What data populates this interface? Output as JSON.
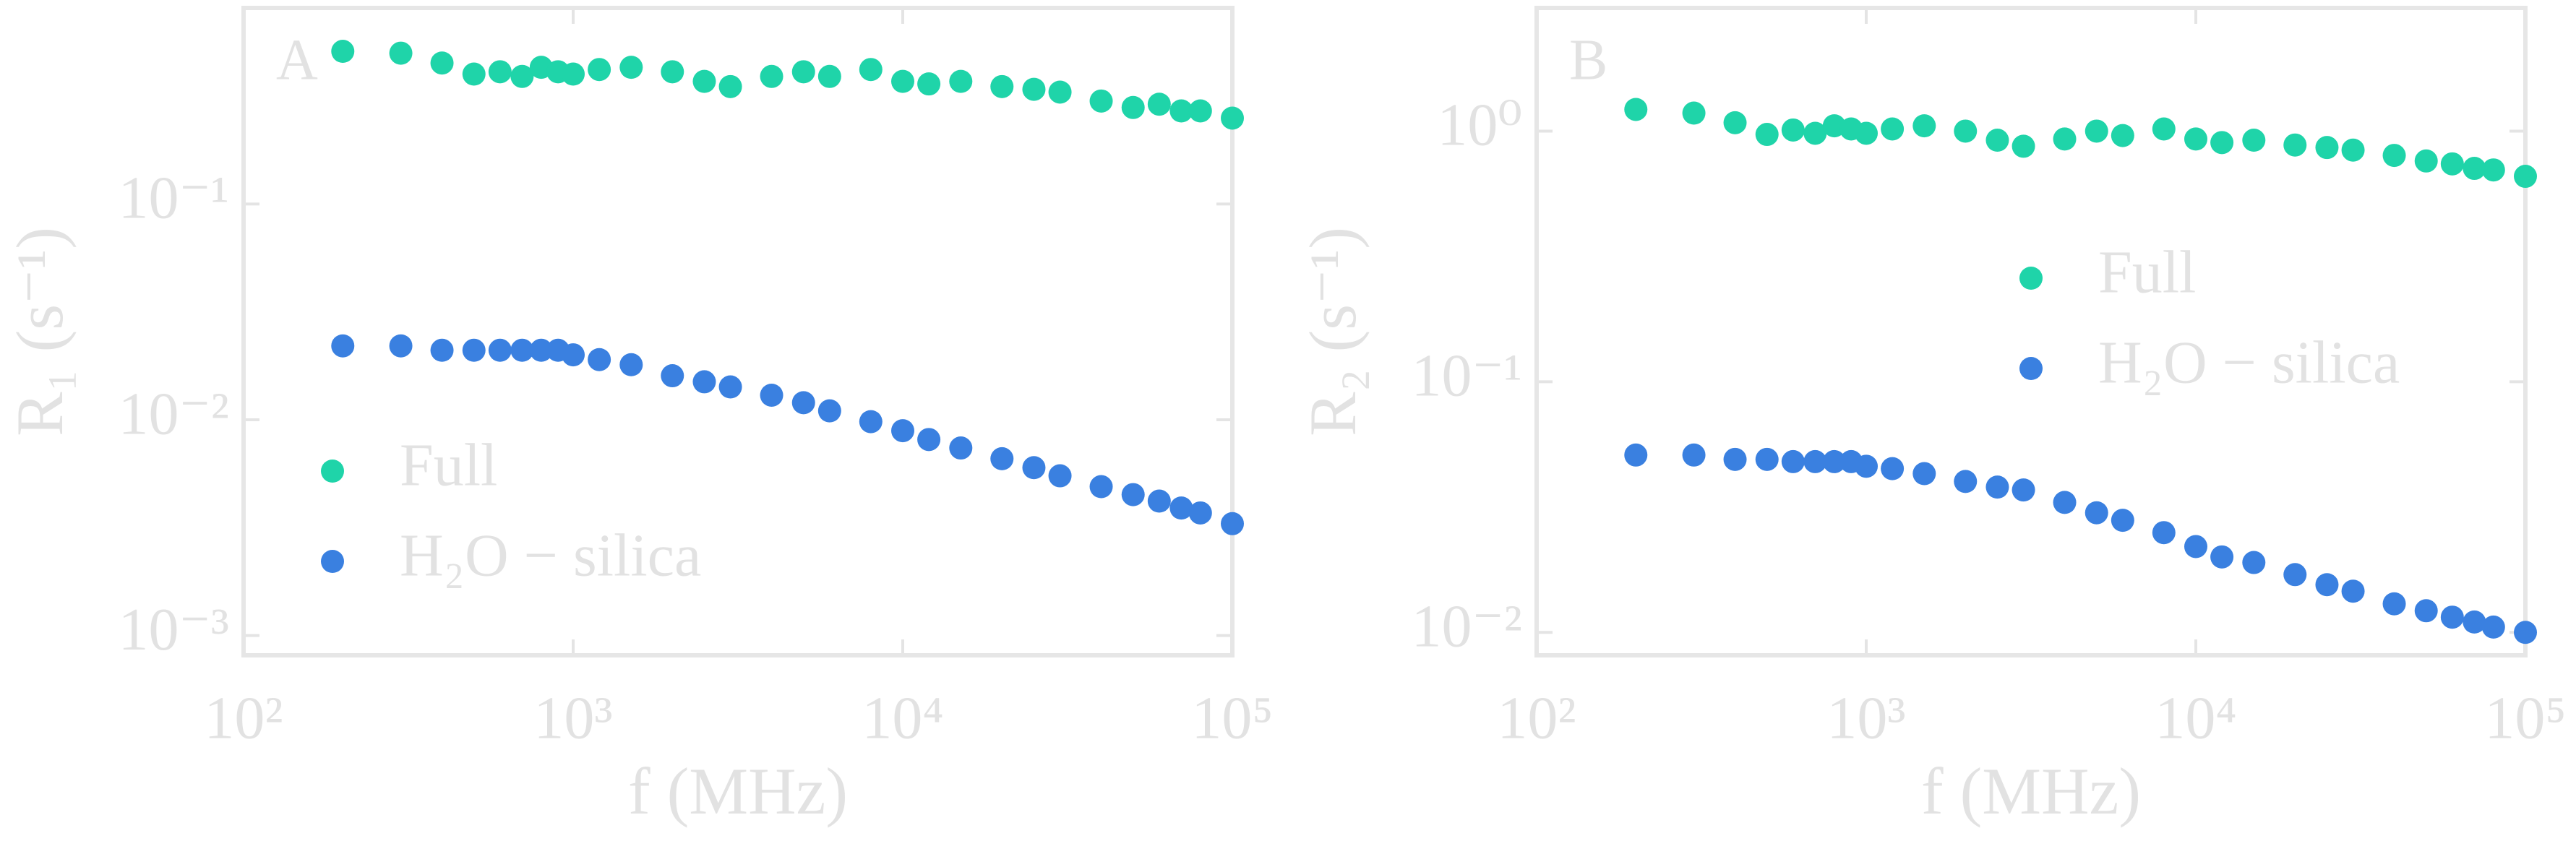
{
  "chart_data": [
    {
      "type": "scatter",
      "panel": "A",
      "x_label": "f (MHz)",
      "y_label": "R₁ (s⁻¹)",
      "log_x": true,
      "log_y": true,
      "xlim": [
        100,
        100000
      ],
      "ylim": [
        0.00081,
        0.81
      ],
      "xticks": [
        {
          "value": 100,
          "label": "10²"
        },
        {
          "value": 1000,
          "label": "10³"
        },
        {
          "value": 10000,
          "label": "10⁴"
        },
        {
          "value": 100000,
          "label": "10⁵"
        }
      ],
      "yticks": [
        {
          "value": 0.001,
          "label": "10⁻³"
        },
        {
          "value": 0.01,
          "label": "10⁻²"
        },
        {
          "value": 0.1,
          "label": "10⁻¹"
        }
      ],
      "legend_position": "lower left",
      "x": [
        200,
        300,
        400,
        500,
        600,
        700,
        800,
        900,
        1000,
        1200,
        1500,
        2000,
        2500,
        3000,
        4000,
        5000,
        6000,
        8000,
        10000,
        12000,
        15000,
        20000,
        25000,
        30000,
        40000,
        50000,
        60000,
        70000,
        80000,
        100000
      ],
      "series": [
        {
          "name": "Full",
          "color": "#1fd4a9",
          "values": [
            0.51,
            0.5,
            0.45,
            0.4,
            0.41,
            0.39,
            0.43,
            0.41,
            0.4,
            0.42,
            0.43,
            0.41,
            0.37,
            0.35,
            0.39,
            0.41,
            0.39,
            0.42,
            0.37,
            0.36,
            0.37,
            0.35,
            0.34,
            0.33,
            0.3,
            0.28,
            0.29,
            0.27,
            0.27,
            0.25
          ]
        },
        {
          "name": "H₂O − silica",
          "color": "#3a80e0",
          "values": [
            0.022,
            0.022,
            0.021,
            0.021,
            0.021,
            0.021,
            0.021,
            0.021,
            0.02,
            0.019,
            0.018,
            0.016,
            0.015,
            0.0142,
            0.013,
            0.012,
            0.011,
            0.0098,
            0.0089,
            0.0081,
            0.0074,
            0.0066,
            0.006,
            0.0055,
            0.0049,
            0.0045,
            0.0042,
            0.0039,
            0.0037,
            0.0033
          ]
        }
      ]
    },
    {
      "type": "scatter",
      "panel": "B",
      "x_label": "f (MHz)",
      "y_label": "R₂ (s⁻¹)",
      "log_x": true,
      "log_y": true,
      "xlim": [
        100,
        100000
      ],
      "ylim": [
        0.0081,
        3.1
      ],
      "xticks": [
        {
          "value": 100,
          "label": "10²"
        },
        {
          "value": 1000,
          "label": "10³"
        },
        {
          "value": 10000,
          "label": "10⁴"
        },
        {
          "value": 100000,
          "label": "10⁵"
        }
      ],
      "yticks": [
        {
          "value": 0.01,
          "label": "10⁻²"
        },
        {
          "value": 0.1,
          "label": "10⁻¹"
        },
        {
          "value": 1,
          "label": "10⁰"
        }
      ],
      "legend_position": "center right",
      "x": [
        200,
        300,
        400,
        500,
        600,
        700,
        800,
        900,
        1000,
        1200,
        1500,
        2000,
        2500,
        3000,
        4000,
        5000,
        6000,
        8000,
        10000,
        12000,
        15000,
        20000,
        25000,
        30000,
        40000,
        50000,
        60000,
        70000,
        80000,
        100000
      ],
      "series": [
        {
          "name": "Full",
          "color": "#1fd4a9",
          "values": [
            1.22,
            1.18,
            1.08,
            0.97,
            1.01,
            0.98,
            1.05,
            1.02,
            0.98,
            1.02,
            1.05,
            1.0,
            0.92,
            0.87,
            0.93,
            1.0,
            0.96,
            1.02,
            0.93,
            0.9,
            0.92,
            0.88,
            0.86,
            0.84,
            0.8,
            0.76,
            0.74,
            0.71,
            0.7,
            0.66
          ]
        },
        {
          "name": "H₂O − silica",
          "color": "#3a80e0",
          "values": [
            0.051,
            0.051,
            0.049,
            0.049,
            0.048,
            0.048,
            0.048,
            0.048,
            0.046,
            0.045,
            0.043,
            0.04,
            0.038,
            0.037,
            0.033,
            0.03,
            0.028,
            0.025,
            0.022,
            0.02,
            0.019,
            0.017,
            0.0155,
            0.0146,
            0.013,
            0.0122,
            0.0115,
            0.011,
            0.0105,
            0.01
          ]
        }
      ]
    }
  ]
}
